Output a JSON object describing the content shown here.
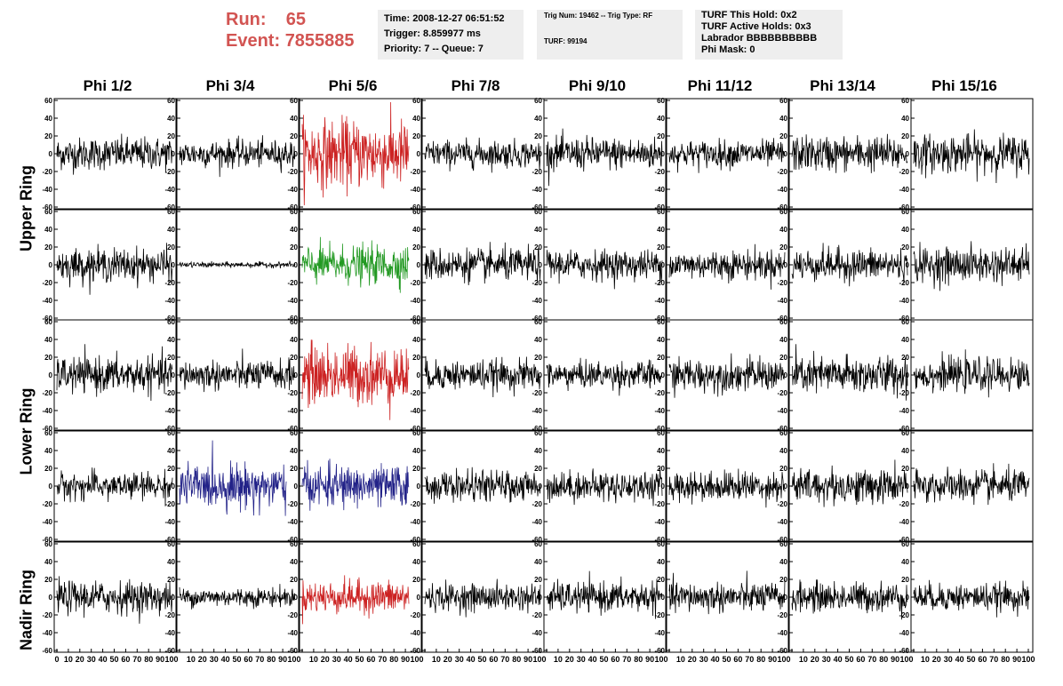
{
  "header": {
    "run_label": "Run:",
    "run_value": "65",
    "event_label": "Event:",
    "event_value": "7855885"
  },
  "info_box_1": {
    "time": "Time: 2008-12-27 06:51:52",
    "trigger": "Trigger: 8.859977 ms",
    "priority": "Priority: 7 -- Queue: 7"
  },
  "info_box_2": {
    "trig": "Trig Num: 19462 -- Trig Type: RF",
    "turf": "TURF: 99194"
  },
  "info_box_3": {
    "hold": "TURF This Hold: 0x2",
    "active": "TURF Active Holds: 0x3",
    "labrador": "Labrador BBBBBBBBBB",
    "phimask": "Phi Mask: 0"
  },
  "columns": [
    "Phi 1/2",
    "Phi 3/4",
    "Phi 5/6",
    "Phi 7/8",
    "Phi 9/10",
    "Phi 11/12",
    "Phi 13/14",
    "Phi 15/16"
  ],
  "ring_labels": {
    "upper": "Upper Ring",
    "lower": "Lower Ring",
    "nadir": "Nadir Ring"
  },
  "colors": {
    "black": "#000000",
    "red": "#cc2222",
    "green": "#229922",
    "blue": "#222288",
    "title_red": "#d25452",
    "box_bg": "#eeeeee"
  },
  "chart_data": {
    "type": "line",
    "ylim": [
      -60,
      60
    ],
    "xlim": [
      0,
      100
    ],
    "yticks": [
      "60",
      "40",
      "20",
      "0",
      "-20",
      "-40",
      "-60"
    ],
    "xticks": [
      "0",
      "10",
      "20",
      "30",
      "40",
      "50",
      "60",
      "70",
      "80",
      "90",
      "100"
    ],
    "rows": 5,
    "cols": 8,
    "panel_colors": [
      [
        "black",
        "black",
        "red",
        "black",
        "black",
        "black",
        "black",
        "black"
      ],
      [
        "black",
        "black",
        "green",
        "black",
        "black",
        "black",
        "black",
        "black"
      ],
      [
        "black",
        "black",
        "red",
        "black",
        "black",
        "black",
        "black",
        "black"
      ],
      [
        "black",
        "blue",
        "blue",
        "black",
        "black",
        "black",
        "black",
        "black"
      ],
      [
        "black",
        "black",
        "red",
        "black",
        "black",
        "black",
        "black",
        "black"
      ]
    ],
    "panel_amplitudes": [
      [
        12,
        10,
        25,
        10,
        12,
        10,
        13,
        14
      ],
      [
        12,
        2,
        14,
        12,
        11,
        11,
        12,
        13
      ],
      [
        13,
        11,
        22,
        11,
        10,
        12,
        14,
        12
      ],
      [
        10,
        16,
        15,
        11,
        11,
        11,
        13,
        12
      ],
      [
        12,
        7,
        12,
        10,
        11,
        11,
        11,
        10
      ]
    ]
  }
}
